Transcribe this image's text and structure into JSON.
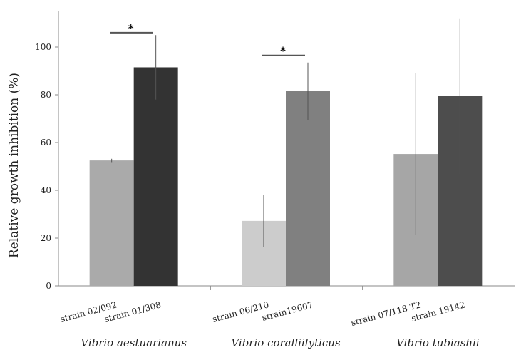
{
  "chart_data": {
    "type": "bar",
    "ylabel": "Relative growth inhibition (%)",
    "xlabel": "",
    "ylim": [
      0,
      115
    ],
    "yticks": [
      0,
      20,
      40,
      60,
      80,
      100
    ],
    "grid": false,
    "groups": [
      {
        "name": "Vibrio aestuarianus",
        "bars": [
          {
            "label": "strain 02/092",
            "value": 52.5,
            "error": 0.7,
            "color": "#aaaaaa"
          },
          {
            "label": "strain 01/308",
            "value": 91.5,
            "error": 13.5,
            "color": "#333333"
          }
        ],
        "significance": "*",
        "significance_y": 106
      },
      {
        "name": "Vibrio coralliilyticus",
        "bars": [
          {
            "label": "strain 06/210",
            "value": 27.2,
            "error": 10.8,
            "color": "#cccccc"
          },
          {
            "label": "strain19607",
            "value": 81.5,
            "error": 12.0,
            "color": "#808080"
          }
        ],
        "significance": "*",
        "significance_y": 96.5
      },
      {
        "name": "Vibrio tubiashii",
        "bars": [
          {
            "label": "strain 07/118 T2",
            "value": 55.2,
            "error": 34.0,
            "color": "#a6a6a6"
          },
          {
            "label": "strain 19142",
            "value": 79.5,
            "error": 32.5,
            "color": "#4d4d4d"
          }
        ],
        "significance": "",
        "significance_y": null
      }
    ]
  }
}
